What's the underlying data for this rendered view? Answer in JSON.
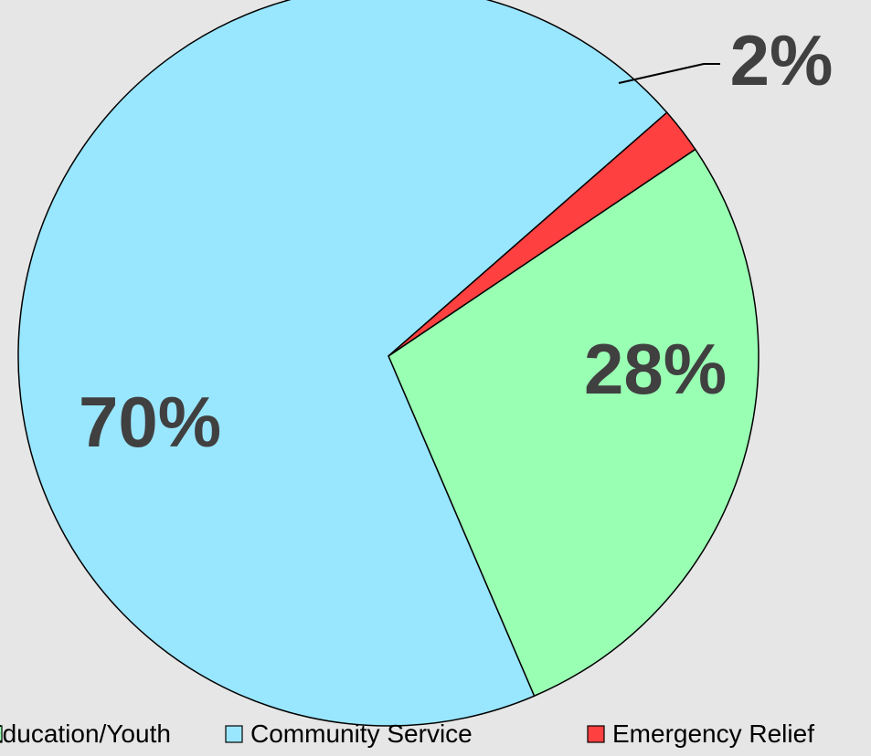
{
  "chart_data": {
    "type": "pie",
    "title": "",
    "categories": [
      "Education/Youth",
      "Community Service",
      "Emergency Relief"
    ],
    "values": [
      28,
      70,
      2
    ],
    "labels": [
      "28%",
      "70%",
      "2%"
    ],
    "colors": [
      "#99ffb3",
      "#99e6ff",
      "#ff4040"
    ],
    "legend": {
      "position": "bottom",
      "entries": [
        "Education/Youth",
        "Community Service",
        "Emergency Relief"
      ]
    }
  }
}
